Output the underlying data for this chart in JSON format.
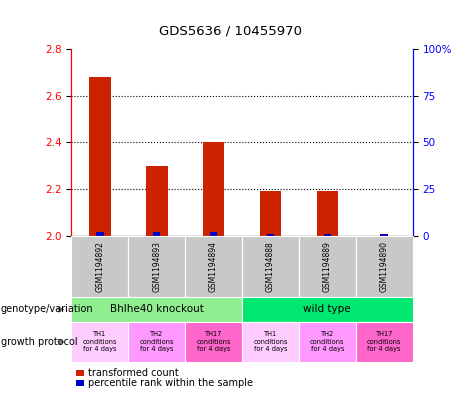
{
  "title": "GDS5636 / 10455970",
  "samples": [
    "GSM1194892",
    "GSM1194893",
    "GSM1194894",
    "GSM1194888",
    "GSM1194889",
    "GSM1194890"
  ],
  "transformed_counts": [
    2.68,
    2.3,
    2.4,
    2.19,
    2.19,
    2.0
  ],
  "percentile_values": [
    2,
    2,
    2,
    1,
    1,
    1
  ],
  "ylim_left": [
    2.0,
    2.8
  ],
  "ylim_right": [
    0,
    100
  ],
  "yticks_left": [
    2.0,
    2.2,
    2.4,
    2.6,
    2.8
  ],
  "yticks_right": [
    0,
    25,
    50,
    75,
    100
  ],
  "ytick_right_labels": [
    "0",
    "25",
    "50",
    "75",
    "100%"
  ],
  "gridlines_at": [
    2.2,
    2.4,
    2.6
  ],
  "genotype_groups": [
    {
      "label": "Bhlhe40 knockout",
      "start": 0,
      "end": 3,
      "color": "#90EE90"
    },
    {
      "label": "wild type",
      "start": 3,
      "end": 6,
      "color": "#00E870"
    }
  ],
  "growth_protocols": [
    {
      "label": "TH1\nconditions\nfor 4 days",
      "color": "#FFCCFF"
    },
    {
      "label": "TH2\nconditions\nfor 4 days",
      "color": "#FF99FF"
    },
    {
      "label": "TH17\nconditions\nfor 4 days",
      "color": "#FF66CC"
    },
    {
      "label": "TH1\nconditions\nfor 4 days",
      "color": "#FFCCFF"
    },
    {
      "label": "TH2\nconditions\nfor 4 days",
      "color": "#FF99FF"
    },
    {
      "label": "TH17\nconditions\nfor 4 days",
      "color": "#FF66CC"
    }
  ],
  "bar_color": "#CC2200",
  "blue_color": "#0000CC",
  "sample_bg_color": "#C8C8C8",
  "legend_red_label": "transformed count",
  "legend_blue_label": "percentile rank within the sample",
  "genotype_label": "genotype/variation",
  "protocol_label": "growth protocol"
}
